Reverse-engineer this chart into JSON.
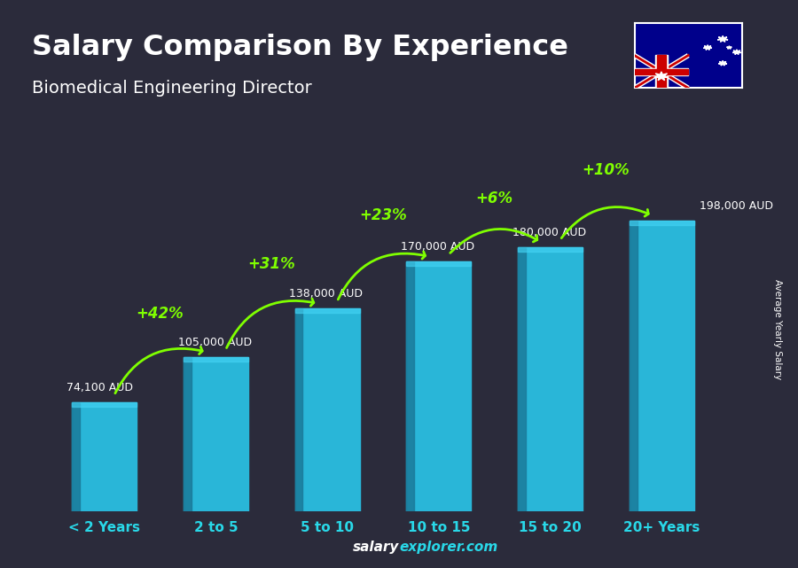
{
  "title": "Salary Comparison By Experience",
  "subtitle": "Biomedical Engineering Director",
  "categories": [
    "< 2 Years",
    "2 to 5",
    "5 to 10",
    "10 to 15",
    "15 to 20",
    "20+ Years"
  ],
  "values": [
    74100,
    105000,
    138000,
    170000,
    180000,
    198000
  ],
  "salary_labels": [
    "74,100 AUD",
    "105,000 AUD",
    "138,000 AUD",
    "170,000 AUD",
    "180,000 AUD",
    "198,000 AUD"
  ],
  "pct_labels": [
    "+42%",
    "+31%",
    "+23%",
    "+6%",
    "+10%"
  ],
  "bar_color_main": "#29B6D8",
  "bar_color_dark": "#1A7A9A",
  "bar_color_top": "#45D4F5",
  "bg_color": "#2b2b3b",
  "title_color": "#FFFFFF",
  "subtitle_color": "#FFFFFF",
  "tick_color": "#29D8E8",
  "pct_color": "#7FFF00",
  "salary_label_color": "#FFFFFF",
  "ylabel_text": "Average Yearly Salary",
  "ylim_max": 240000,
  "footer_salary_color": "#FFFFFF",
  "footer_explorer_color": "#29D8E8"
}
